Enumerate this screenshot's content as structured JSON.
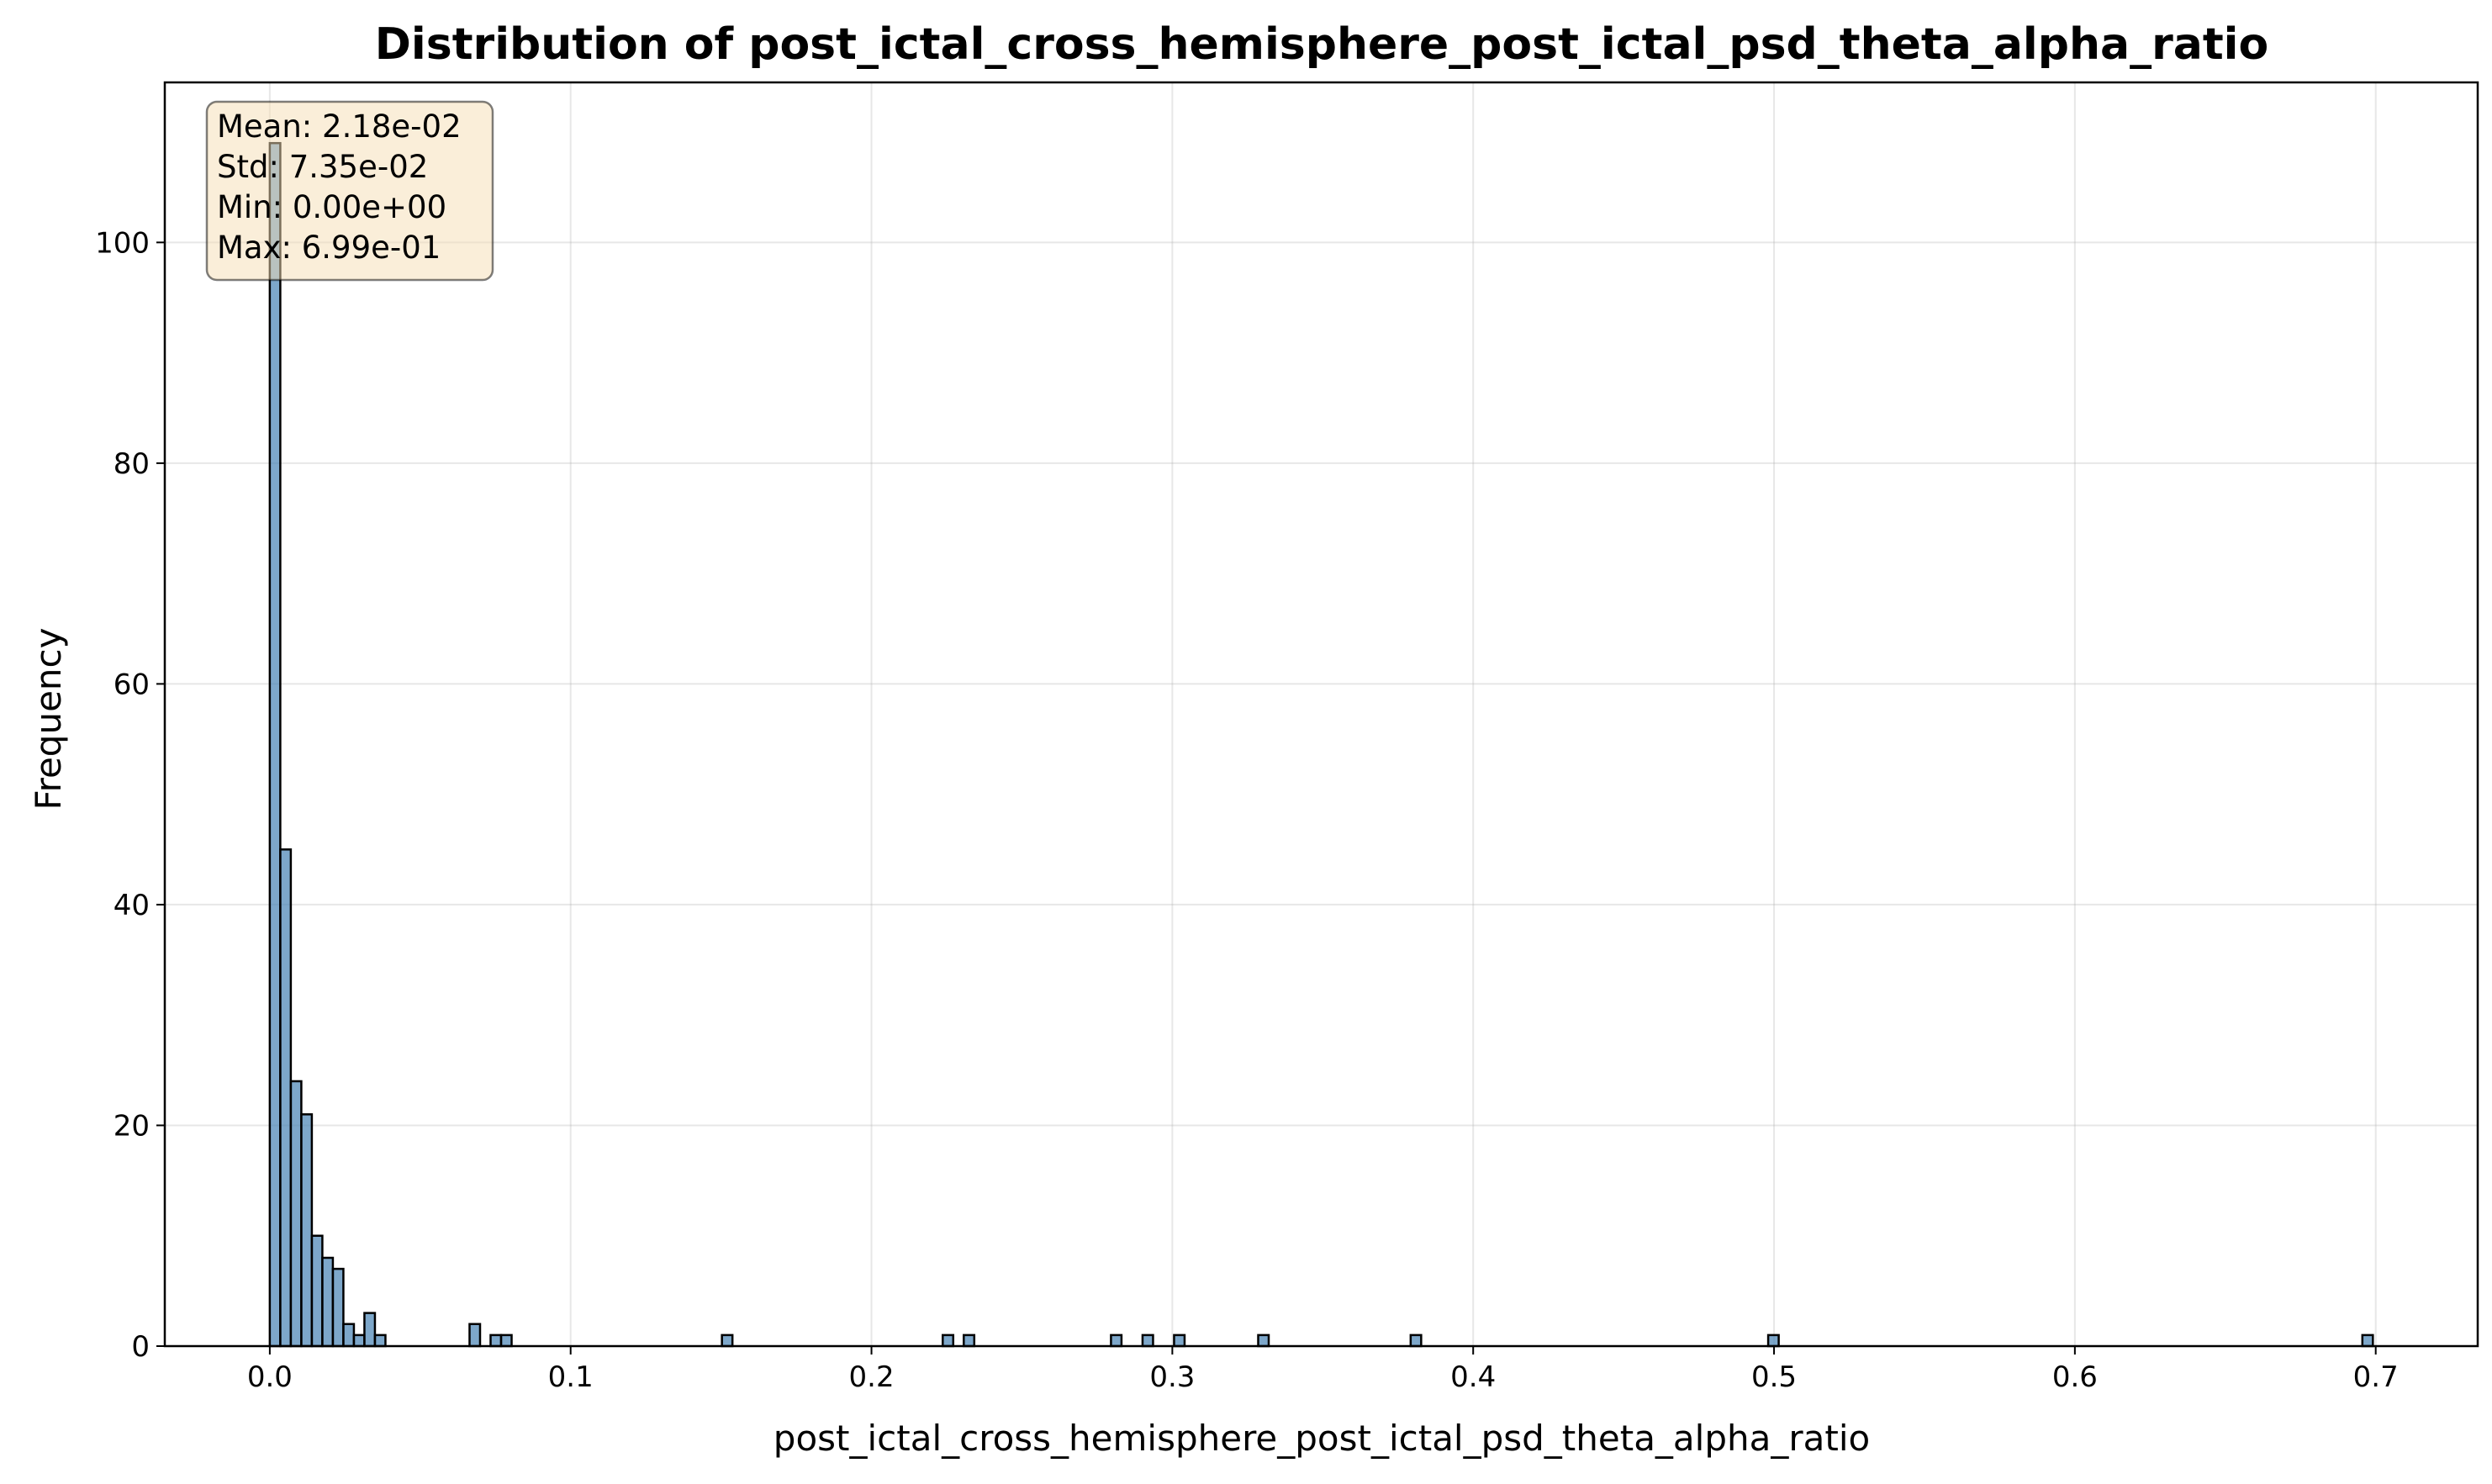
{
  "chart_data": {
    "type": "bar",
    "title": "Distribution of post_ictal_cross_hemisphere_post_ictal_psd_theta_alpha_ratio",
    "xlabel": "post_ictal_cross_hemisphere_post_ictal_psd_theta_alpha_ratio",
    "ylabel": "Frequency",
    "xlim": [
      -0.0349,
      0.7339
    ],
    "ylim": [
      0,
      114.5
    ],
    "x_ticks": [
      "0.0",
      "0.1",
      "0.2",
      "0.3",
      "0.4",
      "0.5",
      "0.6",
      "0.7"
    ],
    "y_ticks": [
      "0",
      "20",
      "40",
      "60",
      "80",
      "100"
    ],
    "grid": true,
    "bin_width": 0.003495,
    "bar_color": "#4682b4",
    "edge_color": "#000000",
    "bins": [
      {
        "x": 0.0,
        "count": 109
      },
      {
        "x": 0.003495,
        "count": 45
      },
      {
        "x": 0.00699,
        "count": 24
      },
      {
        "x": 0.010485,
        "count": 21
      },
      {
        "x": 0.01398,
        "count": 10
      },
      {
        "x": 0.017475,
        "count": 8
      },
      {
        "x": 0.02097,
        "count": 7
      },
      {
        "x": 0.024465,
        "count": 2
      },
      {
        "x": 0.02796,
        "count": 1
      },
      {
        "x": 0.031455,
        "count": 3
      },
      {
        "x": 0.03495,
        "count": 1
      },
      {
        "x": 0.0664,
        "count": 2
      },
      {
        "x": 0.07339,
        "count": 1
      },
      {
        "x": 0.07689,
        "count": 1
      },
      {
        "x": 0.15029,
        "count": 1
      },
      {
        "x": 0.22368,
        "count": 1
      },
      {
        "x": 0.23067,
        "count": 1
      },
      {
        "x": 0.27961,
        "count": 1
      },
      {
        "x": 0.2901,
        "count": 1
      },
      {
        "x": 0.30058,
        "count": 1
      },
      {
        "x": 0.32854,
        "count": 1
      },
      {
        "x": 0.37922,
        "count": 1
      },
      {
        "x": 0.49806,
        "count": 1
      },
      {
        "x": 0.69556,
        "count": 1
      }
    ],
    "stats_box": {
      "lines": [
        "Mean: 2.18e-02",
        "Std: 7.35e-02",
        "Min: 0.00e+00",
        "Max: 6.99e-01"
      ],
      "background": "#f5deb3",
      "placement": "top-left"
    }
  }
}
